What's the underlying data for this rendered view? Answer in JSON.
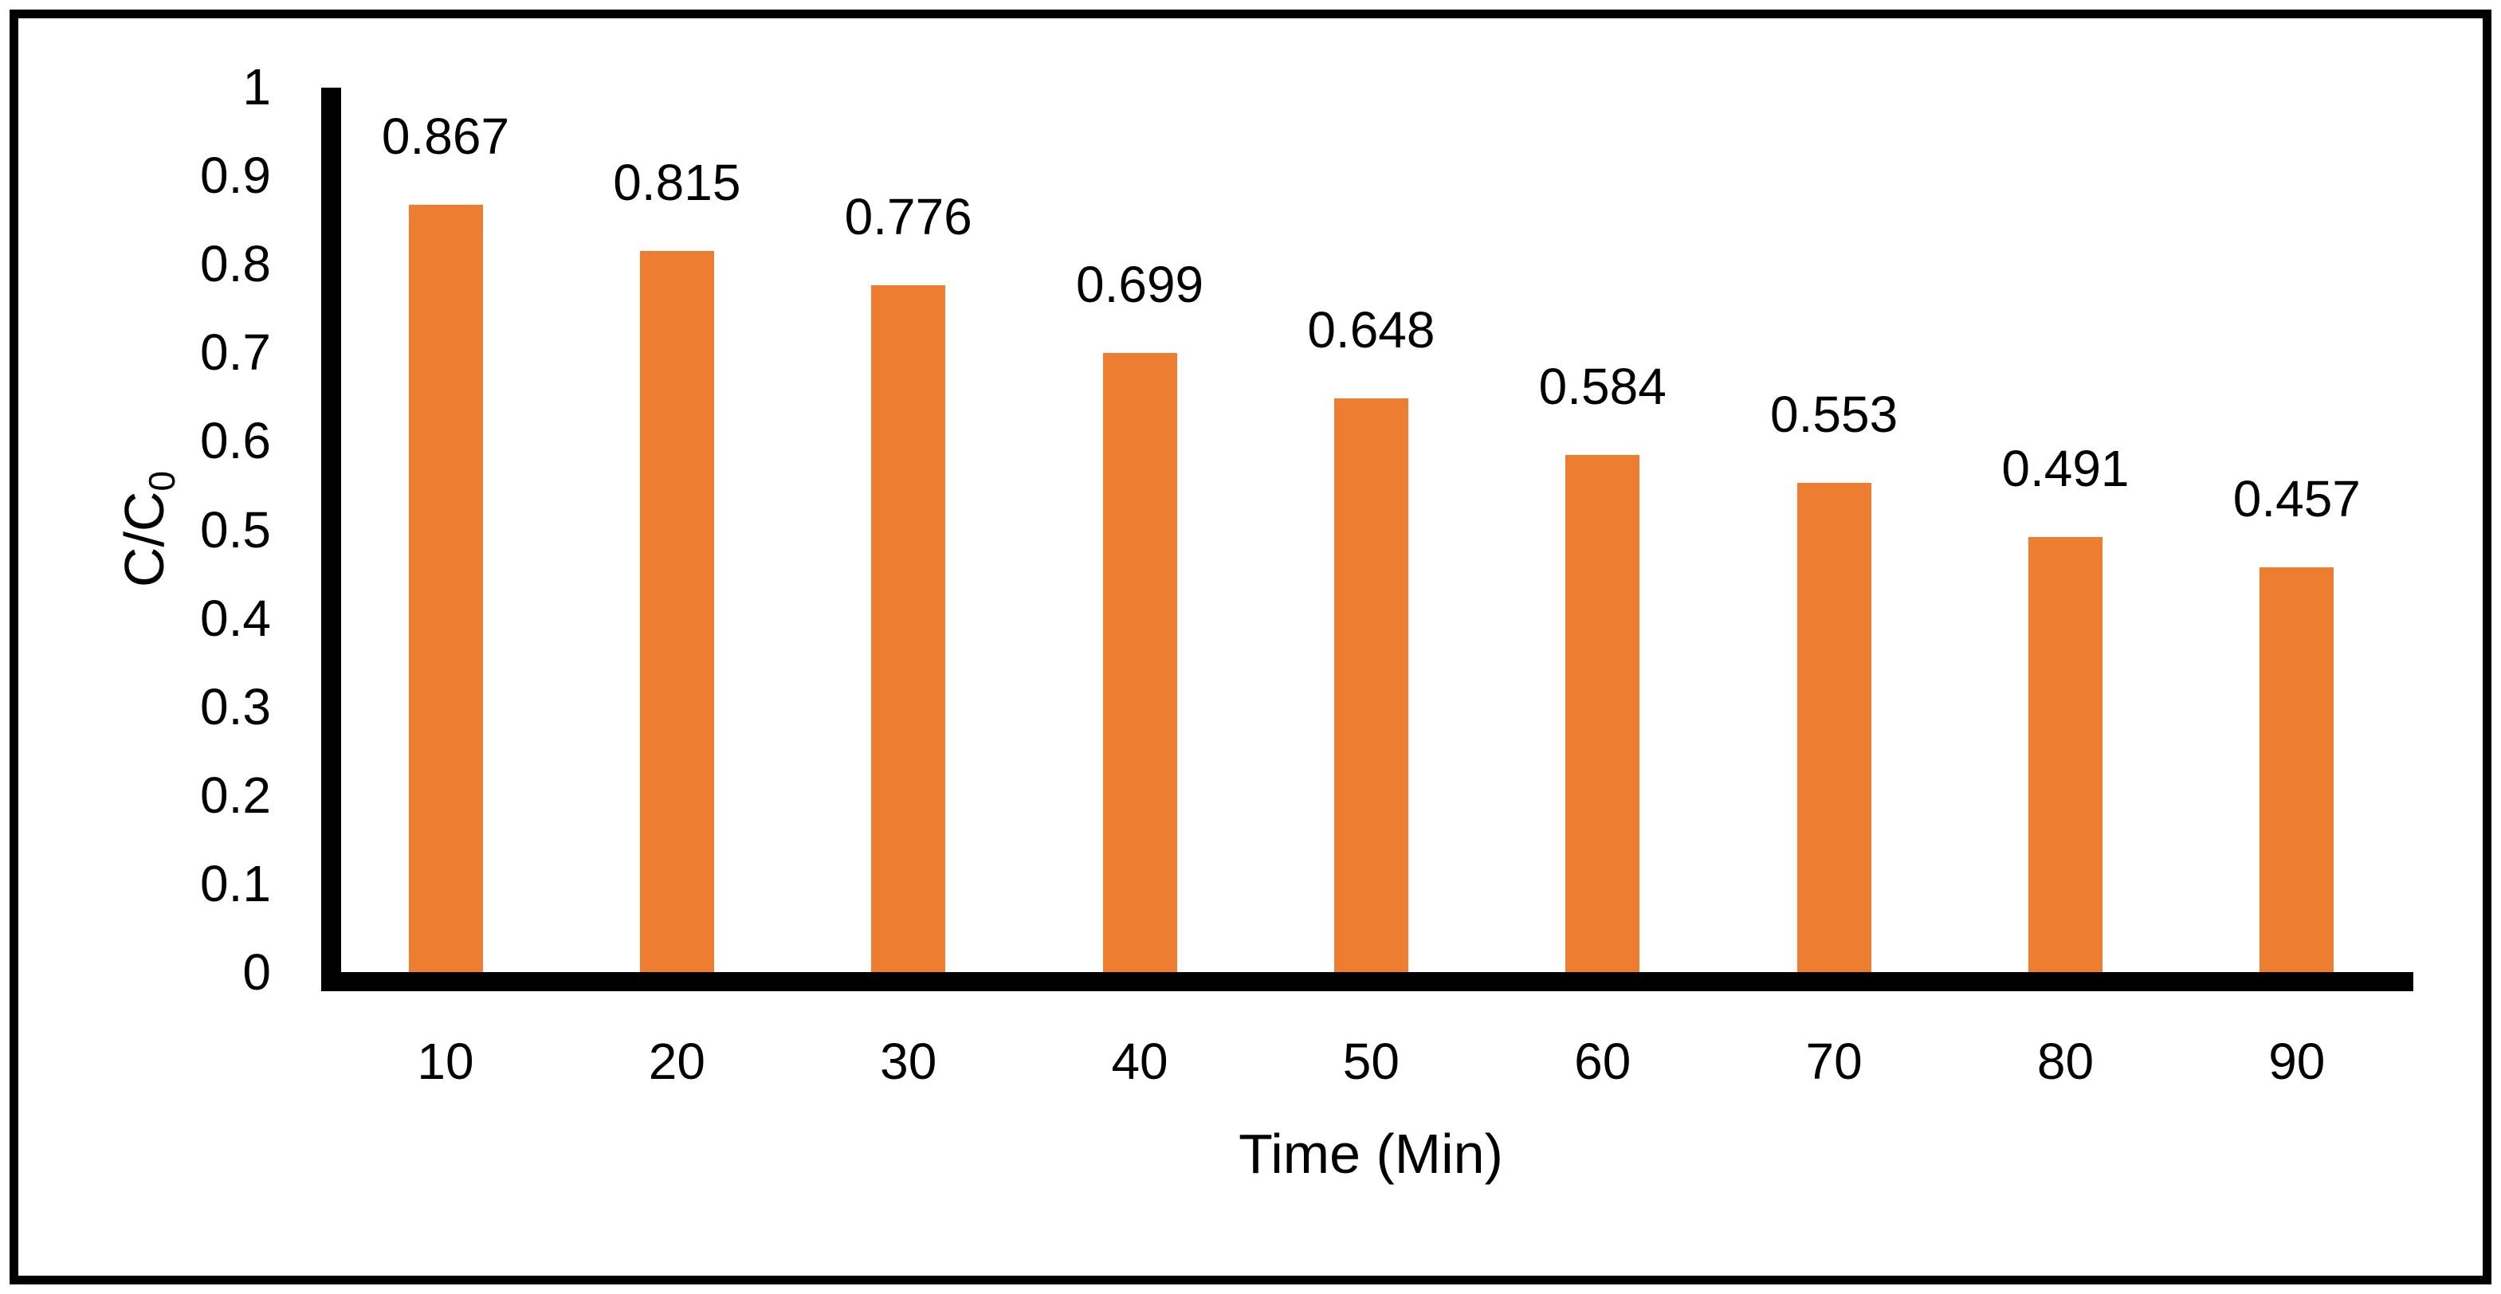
{
  "chart_data": {
    "type": "bar",
    "categories": [
      "10",
      "20",
      "30",
      "40",
      "50",
      "60",
      "70",
      "80",
      "90"
    ],
    "values": [
      0.867,
      0.815,
      0.776,
      0.699,
      0.648,
      0.584,
      0.553,
      0.491,
      0.457
    ],
    "data_labels": [
      "0.867",
      "0.815",
      "0.776",
      "0.699",
      "0.648",
      "0.584",
      "0.553",
      "0.491",
      "0.457"
    ],
    "title": "",
    "xlabel": "Time (Min)",
    "ylabel": "C/C0",
    "ylabel_base": "C/C",
    "ylabel_sub": "0",
    "ylim": [
      0,
      1
    ],
    "ytick_values": [
      1,
      0.9,
      0.8,
      0.7,
      0.6,
      0.5,
      0.4,
      0.3,
      0.2,
      0.1,
      0
    ],
    "ytick_labels": [
      "1",
      "0.9",
      "0.8",
      "0.7",
      "0.6",
      "0.5",
      "0.4",
      "0.3",
      "0.2",
      "0.1",
      "0"
    ],
    "grid": false,
    "legend_position": "none",
    "bar_color": "#ED7D31",
    "axis_color": "#000000",
    "text_color": "#000000",
    "background_color": "#FFFFFF",
    "border_color": "#000000"
  }
}
